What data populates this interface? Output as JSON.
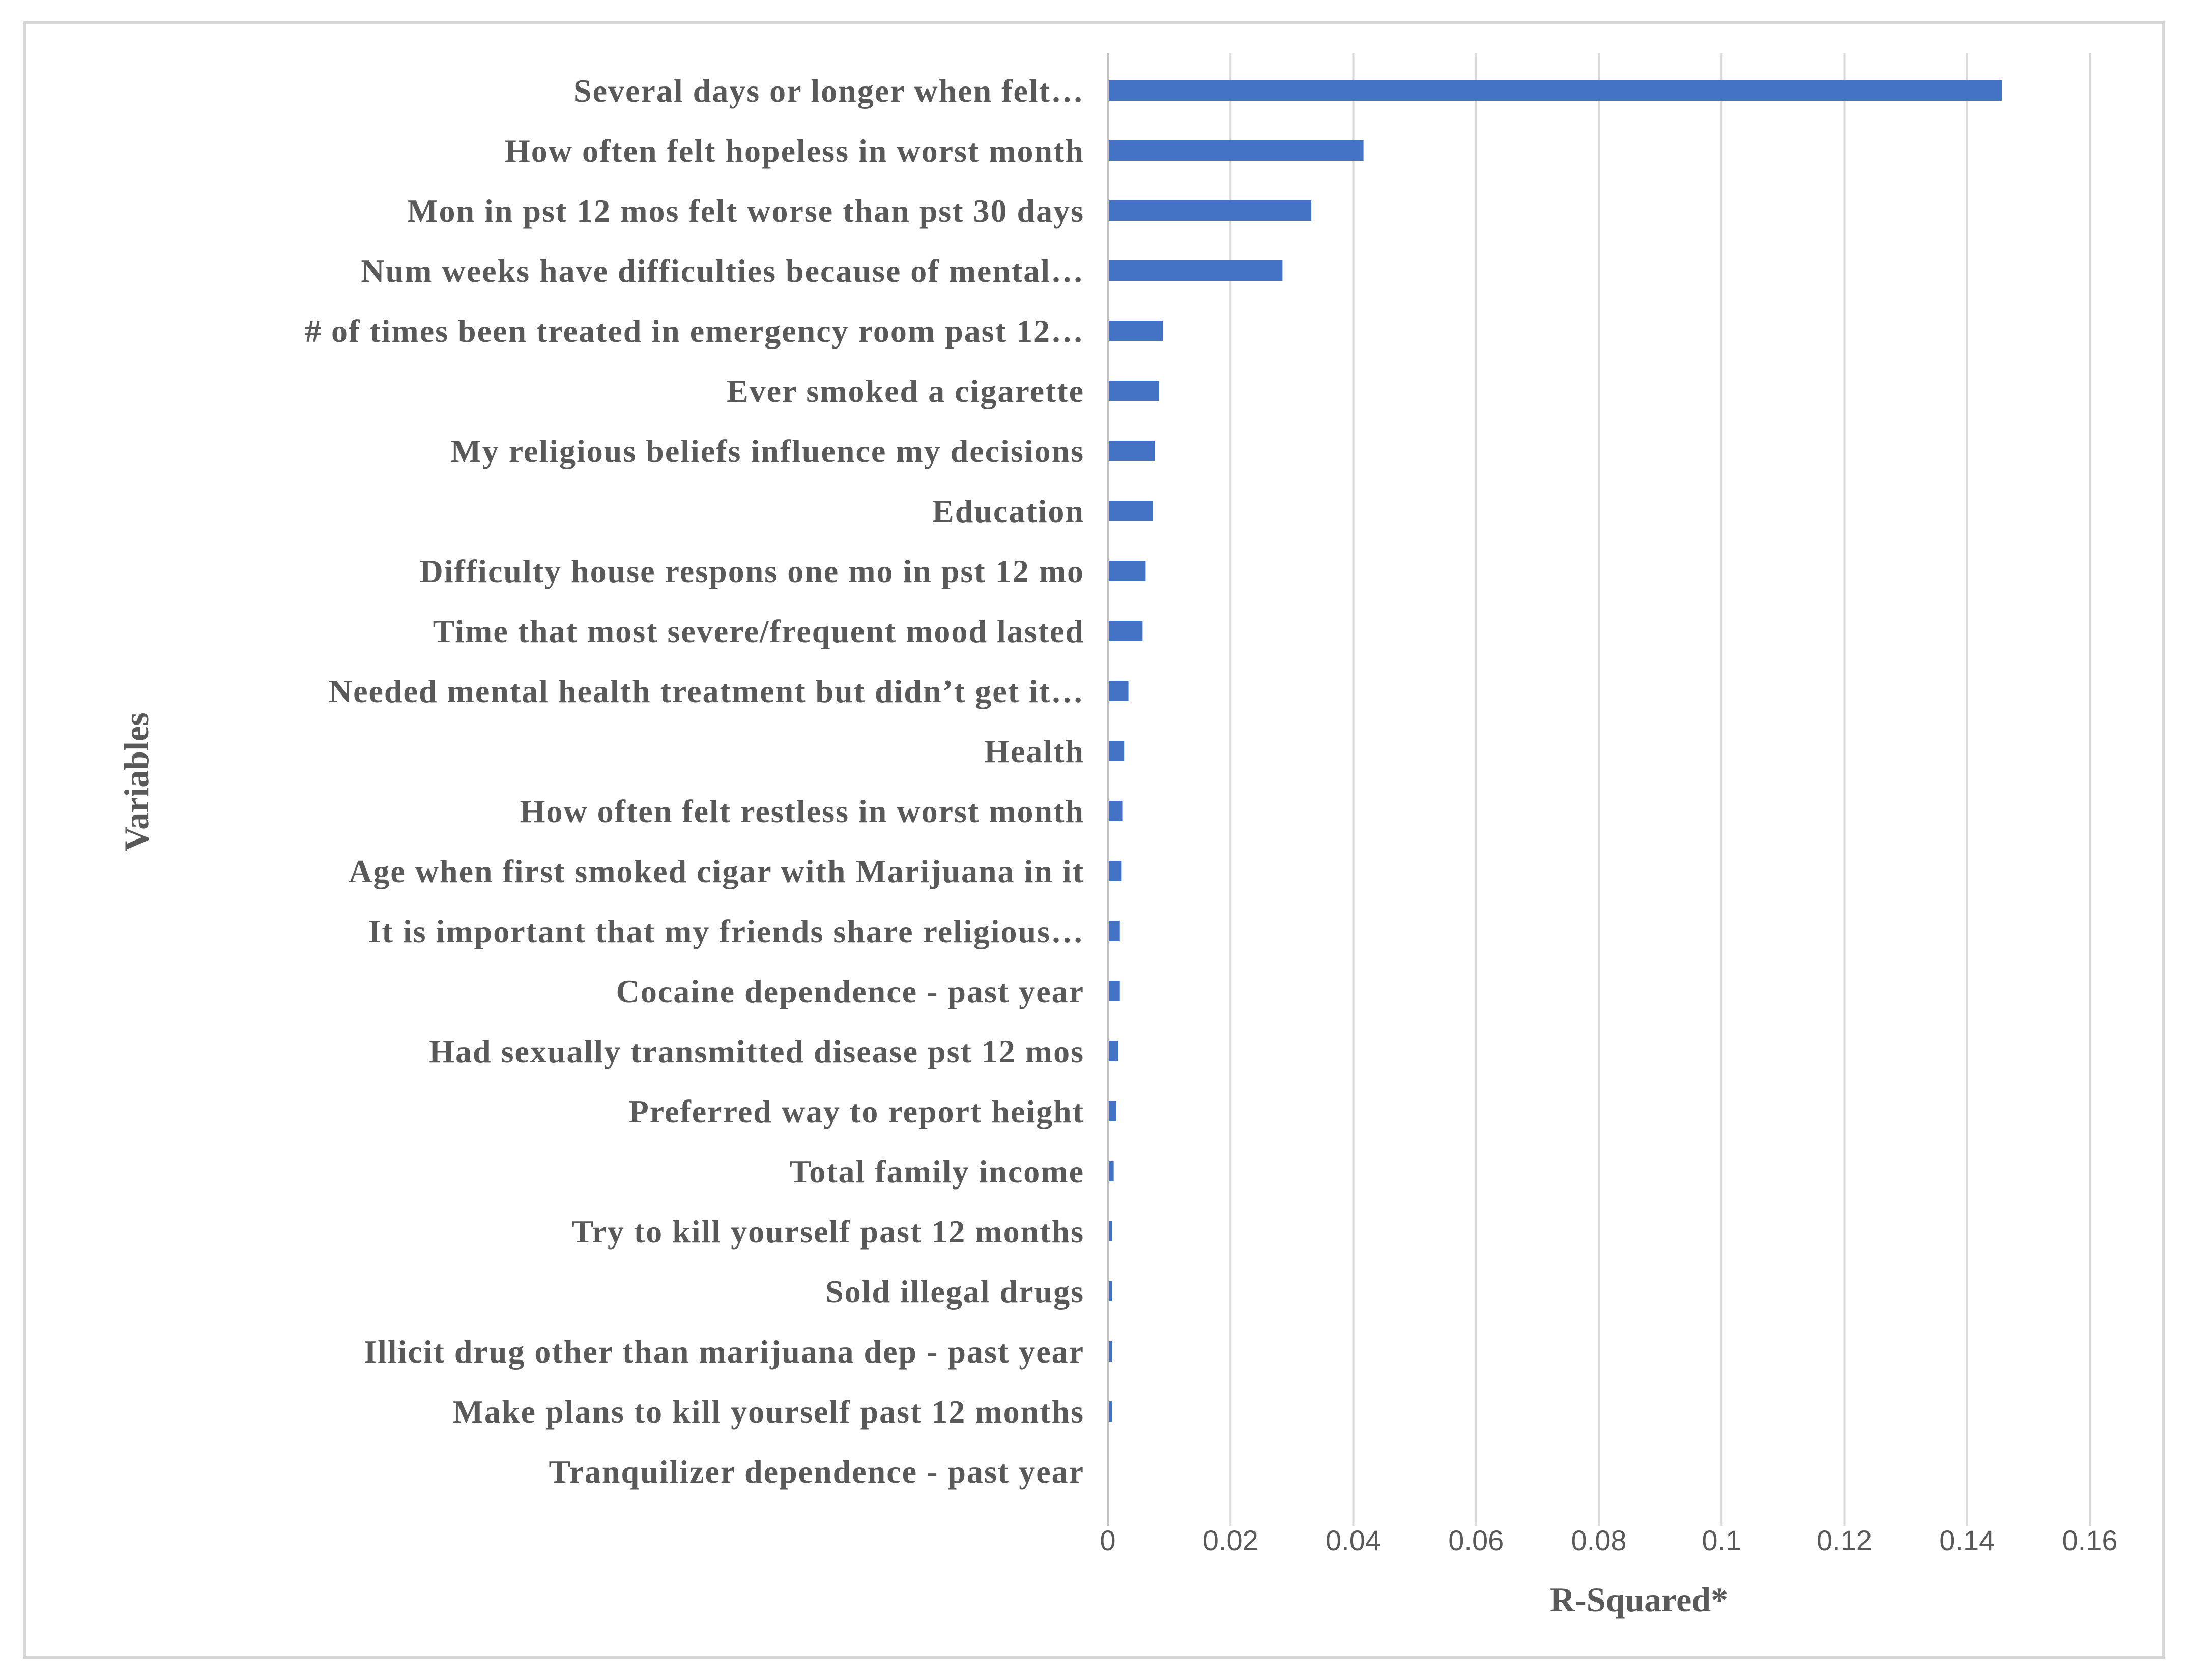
{
  "chart_data": {
    "type": "bar",
    "orientation": "horizontal",
    "title": "",
    "xlabel": "R-Squared*",
    "ylabel": "Variables",
    "xlim": [
      0,
      0.16
    ],
    "xticks": [
      "0",
      "0.02",
      "0.04",
      "0.06",
      "0.08",
      "0.1",
      "0.12",
      "0.14",
      "0.16"
    ],
    "grid": true,
    "bar_color": "#4472C4",
    "grid_color": "#d9d9d9",
    "text_color": "#595959",
    "categories": [
      "Several days or longer when felt…",
      "How often felt hopeless in worst month",
      "Mon in pst 12 mos felt worse than pst 30 days",
      "Num weeks have difficulties because of mental…",
      "# of times been treated in emergency room past 12…",
      "Ever smoked a cigarette",
      "My religious beliefs influence my decisions",
      "Education",
      "Difficulty house respons one mo in pst 12 mo",
      "Time that most severe/frequent mood lasted",
      "Needed mental health treatment but didn’t get it…",
      "Health",
      "How often felt restless in worst month",
      "Age when first smoked cigar with Marijuana in it",
      "It is important that my friends share religious…",
      "Cocaine dependence - past year",
      "Had sexually transmitted disease pst 12 mos",
      "Preferred way to report height",
      "Total family income",
      "Try to kill yourself past 12 months",
      "Sold illegal drugs",
      "Illicit drug other than marijuana dep - past year",
      "Make plans to kill yourself past 12 months",
      "Tranquilizer dependence - past year"
    ],
    "values": [
      0.1455,
      0.0415,
      0.033,
      0.0283,
      0.0088,
      0.0082,
      0.0075,
      0.0072,
      0.006,
      0.0055,
      0.0032,
      0.0025,
      0.0022,
      0.0021,
      0.0018,
      0.0018,
      0.0015,
      0.0012,
      0.0008,
      0.0005,
      0.0005,
      0.0005,
      0.0005,
      0.0
    ]
  }
}
